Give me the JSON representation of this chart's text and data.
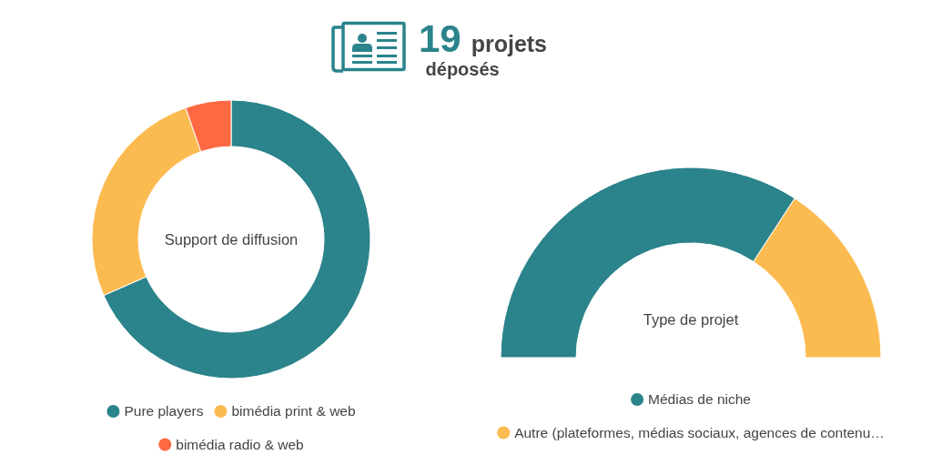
{
  "chart_data": [
    {
      "type": "other",
      "title": "19 projets déposés"
    },
    {
      "type": "donut",
      "title": "Support de diffusion",
      "categories": [
        "Pure players",
        "bimédia print & web",
        "bimédia radio & web"
      ],
      "values": [
        68.4,
        26.3,
        5.3
      ],
      "colors": [
        "#2b838b",
        "#fcbb51",
        "#fe6942"
      ],
      "legend": "bottom"
    },
    {
      "type": "donut",
      "title": "Type de projet",
      "categories": [
        "Médias de niche",
        "Autre (plateformes, médias sociaux, agences de contenu…"
      ],
      "values": [
        68.4,
        31.6
      ],
      "colors": [
        "#2b838b",
        "#fcbb51"
      ],
      "legend": "bottom"
    }
  ]
}
